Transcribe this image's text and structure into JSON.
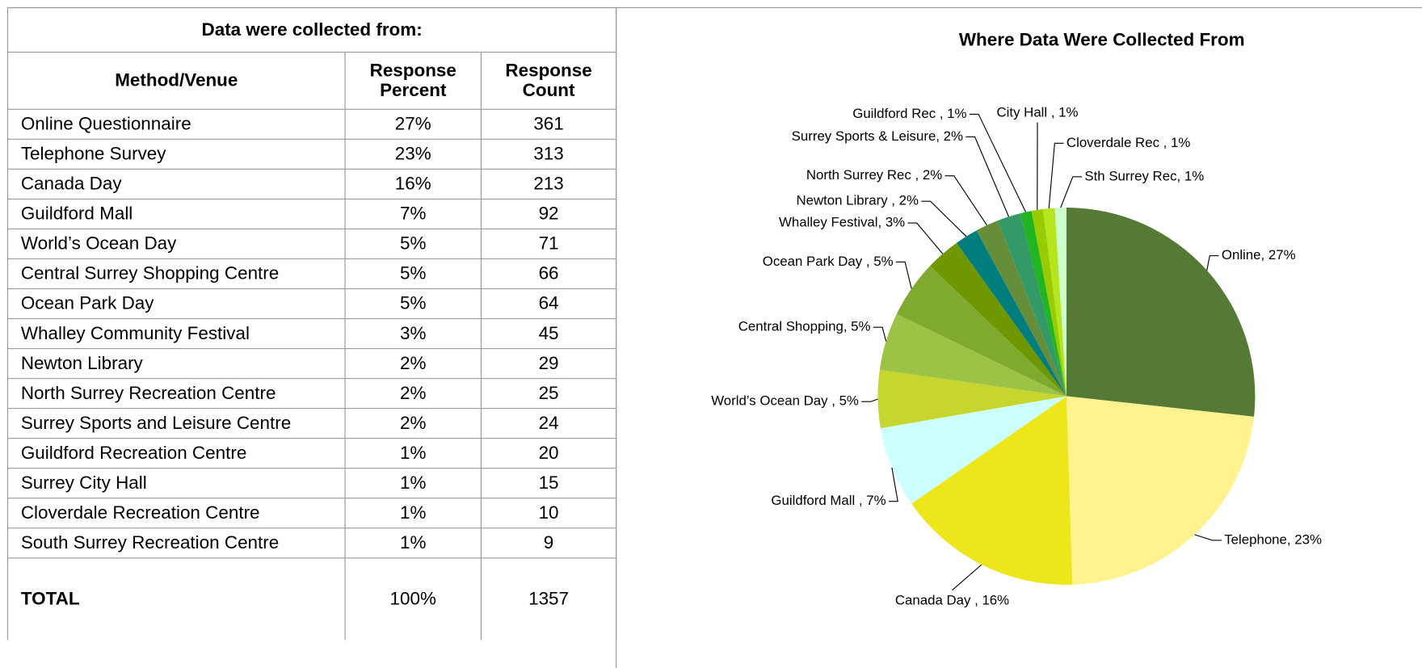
{
  "table": {
    "title": "Data were collected from:",
    "header": [
      "Method/Venue",
      "Response Percent",
      "Response Count"
    ],
    "rows": [
      [
        "Online Questionnaire",
        "27%",
        "361"
      ],
      [
        "Telephone Survey",
        "23%",
        "313"
      ],
      [
        "Canada Day",
        "16%",
        "213"
      ],
      [
        "Guildford Mall",
        "7%",
        "92"
      ],
      [
        "World’s Ocean Day",
        "5%",
        "71"
      ],
      [
        "Central Surrey Shopping Centre",
        "5%",
        "66"
      ],
      [
        "Ocean Park Day",
        "5%",
        "64"
      ],
      [
        "Whalley Community Festival",
        "3%",
        "45"
      ],
      [
        "Newton Library",
        "2%",
        "29"
      ],
      [
        "North Surrey Recreation Centre",
        "2%",
        "25"
      ],
      [
        "Surrey Sports and Leisure Centre",
        "2%",
        "24"
      ],
      [
        "Guildford Recreation Centre",
        "1%",
        "20"
      ],
      [
        "Surrey City Hall",
        "1%",
        "15"
      ],
      [
        "Cloverdale Recreation Centre",
        "1%",
        "10"
      ],
      [
        "South Surrey Recreation Centre",
        "1%",
        "9"
      ]
    ],
    "total": [
      "TOTAL",
      "100%",
      "1357"
    ]
  },
  "chart_data": {
    "type": "pie",
    "title": "Where Data Were Collected From",
    "values": [
      27,
      23,
      16,
      7,
      5,
      5,
      5,
      3,
      2,
      2,
      2,
      1,
      1,
      1,
      1
    ],
    "value_labels": [
      "Online, 27%",
      "Telephone, 23%",
      "Canada Day , 16%",
      "Guildford Mall , 7%",
      "World’s Ocean Day , 5%",
      "Central Shopping, 5%",
      "Ocean Park Day , 5%",
      "Whalley Festival, 3%",
      "Newton Library , 2%",
      "North Surrey Rec , 2%",
      "Surrey Sports & Leisure, 2%",
      "Guildford Rec , 1%",
      "City Hall , 1%",
      "Cloverdale Rec , 1%",
      "Sth Surrey Rec, 1%"
    ],
    "colors": [
      "#557a35",
      "#fff28f",
      "#ece61b",
      "#ccffff",
      "#c6d62f",
      "#9cc246",
      "#80aa2e",
      "#6f9700",
      "#007e7e",
      "#668e3a",
      "#339966",
      "#22b522",
      "#99cc00",
      "#b5e61d",
      "#ccffcc"
    ]
  }
}
